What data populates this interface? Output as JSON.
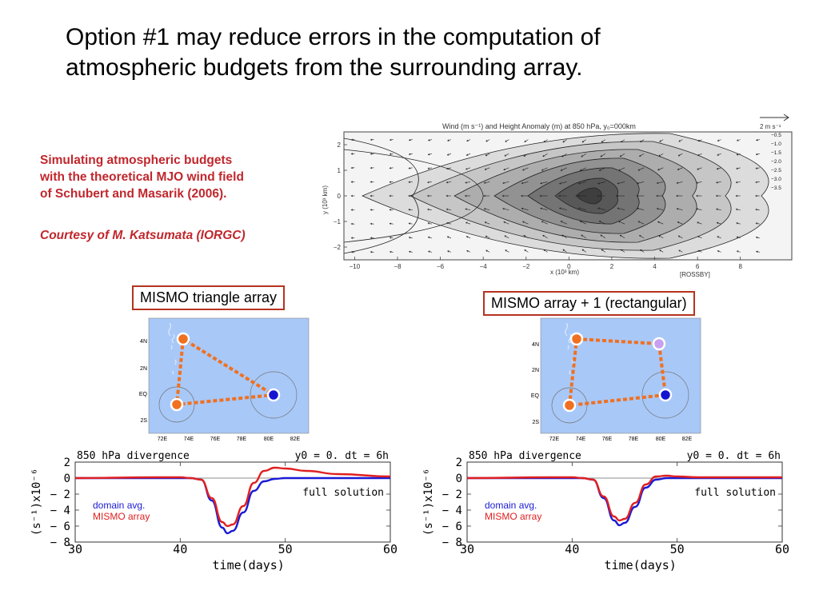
{
  "slide": {
    "title_line1": "Option #1 may reduce errors in the computation of",
    "title_line2": "atmospheric budgets from the surrounding array.",
    "description_lines": [
      "Simulating atmospheric budgets",
      "with the theoretical MJO wind field",
      "of Schubert and Masarik (2006)."
    ],
    "credit": "Courtesy of M. Katsumata (IORGC)"
  },
  "wind_plot": {
    "title": "Wind (m s⁻¹) and Height Anomaly (m) at 850 hPa, y₀=000km",
    "vector_scale": "2 m s⁻¹",
    "xlabel": "x (10³ km)",
    "ylabel": "y (10³ km)",
    "xticks": [
      "−10",
      "−8",
      "−6",
      "−4",
      "−2",
      "0",
      "2",
      "4",
      "6",
      "8"
    ],
    "yticks": [
      "2",
      "1",
      "0",
      "−1",
      "−2"
    ],
    "tag": "[ROSSBY]",
    "contour_labels": [
      "−0.5",
      "−1.0",
      "−1.5",
      "−2.0",
      "−2.5",
      "−3.0",
      "−3.5"
    ]
  },
  "maps": [
    {
      "label": "MISMO triangle array",
      "lat_labels": [
        "4N",
        "2N",
        "EQ",
        "2S"
      ],
      "lon_labels": [
        "72E",
        "74E",
        "76E",
        "78E",
        "80E",
        "82E"
      ]
    },
    {
      "label": "MISMO array + 1 (rectangular)",
      "lat_labels": [
        "4N",
        "2N",
        "EQ",
        "2S"
      ],
      "lon_labels": [
        "72E",
        "74E",
        "76E",
        "78E",
        "80E",
        "82E"
      ]
    }
  ],
  "chart_data": [
    {
      "type": "line",
      "title": "850 hPa divergence",
      "top_right": "y0 = 0. dt = 6h",
      "annotation": "full solution",
      "xlabel": "time(days)",
      "ylabel": "(s⁻¹)x10⁻⁶",
      "xlim": [
        30,
        60
      ],
      "ylim": [
        -8,
        2
      ],
      "xticks": [
        30,
        40,
        50,
        60
      ],
      "yticks": [
        2,
        0,
        -2,
        -4,
        -6,
        -8
      ],
      "x": [
        30,
        38,
        40,
        41,
        42,
        43,
        44,
        44.5,
        45,
        46,
        47,
        48,
        49,
        50,
        52,
        55,
        60
      ],
      "series": [
        {
          "name": "domain avg.",
          "color": "#1a1ad6",
          "values": [
            0,
            0,
            0,
            0,
            -0.2,
            -2.8,
            -6.2,
            -6.9,
            -6.6,
            -4.3,
            -1.6,
            -0.4,
            -0.1,
            0,
            0,
            0,
            0
          ]
        },
        {
          "name": "MISMO array",
          "color": "#e02020",
          "values": [
            0,
            0.1,
            0.1,
            0,
            -0.2,
            -2.5,
            -5.5,
            -6.0,
            -5.8,
            -3.5,
            -0.6,
            0.9,
            1.3,
            1.2,
            0.9,
            0.5,
            0.2
          ]
        }
      ]
    },
    {
      "type": "line",
      "title": "850 hPa divergence",
      "top_right": "y0 = 0. dt = 6h",
      "annotation": "full solution",
      "xlabel": "time(days)",
      "ylabel": "(s⁻¹)x10⁻⁶",
      "xlim": [
        30,
        60
      ],
      "ylim": [
        -8,
        2
      ],
      "xticks": [
        30,
        40,
        50,
        60
      ],
      "yticks": [
        2,
        0,
        -2,
        -4,
        -6,
        -8
      ],
      "x": [
        30,
        38,
        40,
        41,
        42,
        43,
        44,
        44.5,
        45,
        46,
        47,
        48,
        49,
        50,
        52,
        55,
        60
      ],
      "series": [
        {
          "name": "domain avg.",
          "color": "#1a1ad6",
          "values": [
            0,
            0,
            0,
            0,
            -0.2,
            -2.5,
            -5.3,
            -5.9,
            -5.6,
            -3.6,
            -1.2,
            -0.2,
            0,
            0,
            0,
            0,
            0
          ]
        },
        {
          "name": "MISMO array",
          "color": "#e02020",
          "values": [
            0,
            0.1,
            0.1,
            0,
            -0.2,
            -2.3,
            -4.8,
            -5.3,
            -5.1,
            -3.1,
            -0.8,
            0.2,
            0.3,
            0.2,
            0.1,
            0.1,
            0.1
          ]
        }
      ]
    }
  ]
}
